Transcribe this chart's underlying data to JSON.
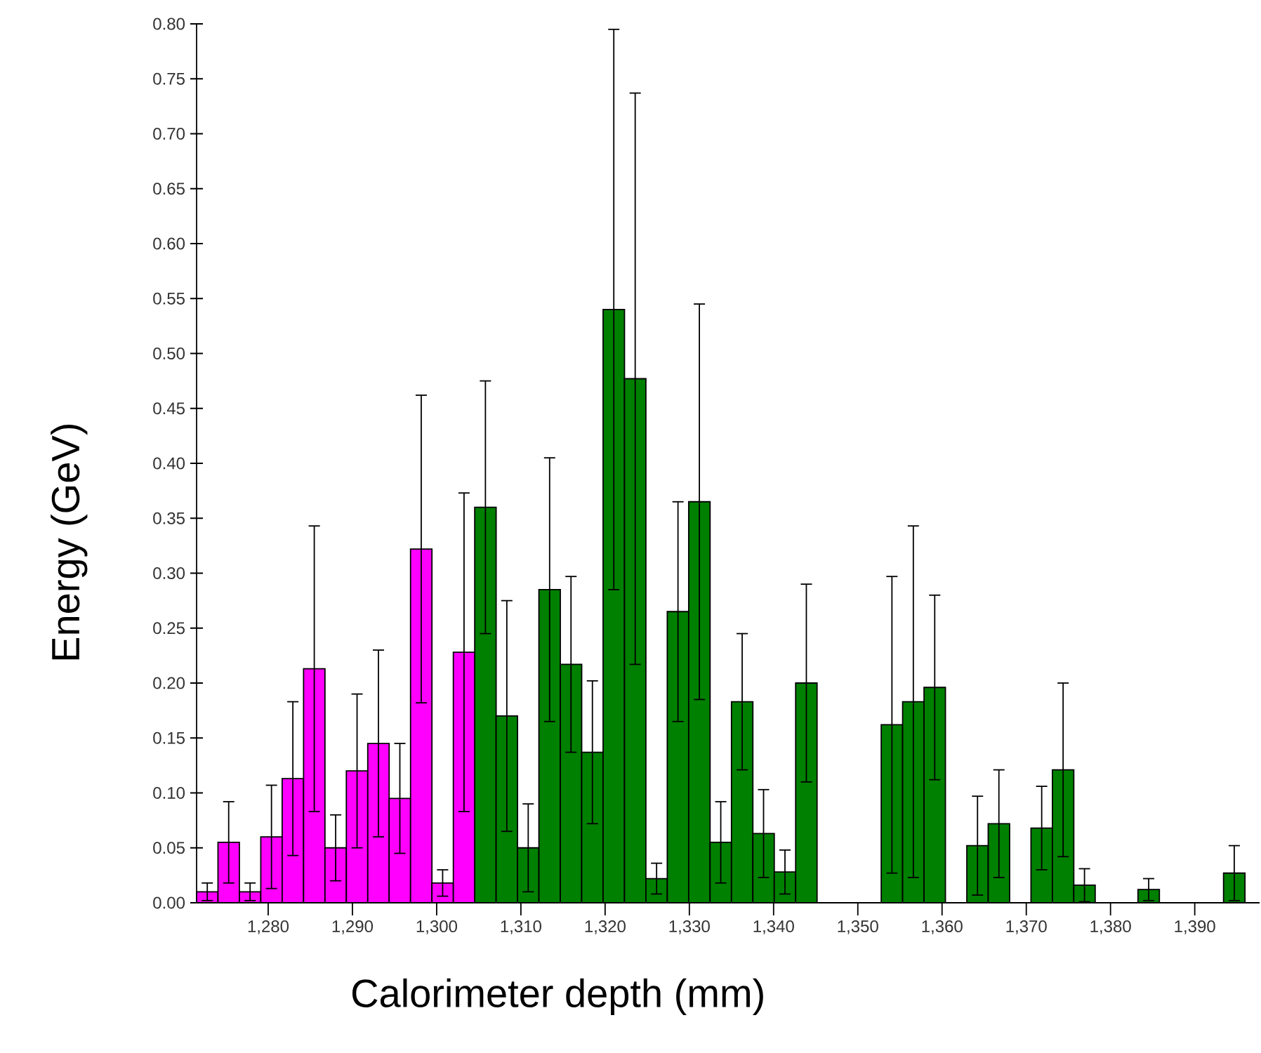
{
  "chart_data": {
    "type": "histogram",
    "xlabel": "Calorimeter depth (mm)",
    "ylabel": "Energy (GeV)",
    "bins": [
      1271.5,
      1274.04,
      1276.58,
      1279.12,
      1281.66,
      1284.2,
      1286.74,
      1289.28,
      1291.82,
      1294.36,
      1296.9,
      1299.44,
      1301.98,
      1304.52,
      1307.06,
      1309.6,
      1312.14,
      1314.68,
      1317.22,
      1319.76,
      1322.3,
      1324.84,
      1327.38,
      1329.92,
      1332.46,
      1335.0,
      1337.54,
      1340.08,
      1342.62,
      1345.16,
      1347.7,
      1350.24,
      1352.78,
      1355.32,
      1357.86,
      1360.4,
      1362.94,
      1365.48,
      1368.02,
      1370.56,
      1373.1,
      1375.64,
      1378.18,
      1380.72,
      1383.26,
      1385.8,
      1388.34,
      1390.88,
      1393.42,
      1395.96
    ],
    "values": [
      0.01,
      0.055,
      0.01,
      0.06,
      0.113,
      0.213,
      0.05,
      0.12,
      0.145,
      0.095,
      0.322,
      0.018,
      0.228,
      0.36,
      0.17,
      0.05,
      0.285,
      0.217,
      0.137,
      0.54,
      0.477,
      0.022,
      0.265,
      0.365,
      0.055,
      0.183,
      0.063,
      0.028,
      0.2,
      0,
      0,
      0,
      0.162,
      0.183,
      0.196,
      0,
      0.052,
      0.072,
      0,
      0.068,
      0.121,
      0.016,
      0,
      0,
      0.012,
      0,
      0,
      0,
      0.027
    ],
    "errors": [
      0.008,
      0.037,
      0.008,
      0.047,
      0.07,
      0.13,
      0.03,
      0.07,
      0.085,
      0.05,
      0.14,
      0.012,
      0.145,
      0.115,
      0.105,
      0.04,
      0.12,
      0.08,
      0.065,
      0.255,
      0.26,
      0.014,
      0.1,
      0.18,
      0.037,
      0.062,
      0.04,
      0.02,
      0.09,
      null,
      null,
      null,
      0.135,
      0.16,
      0.084,
      null,
      0.045,
      0.049,
      null,
      0.038,
      0.079,
      0.015,
      null,
      null,
      0.01,
      null,
      null,
      null,
      0.025
    ],
    "colors": [
      "#ff00ff",
      "#ff00ff",
      "#ff00ff",
      "#ff00ff",
      "#ff00ff",
      "#ff00ff",
      "#ff00ff",
      "#ff00ff",
      "#ff00ff",
      "#ff00ff",
      "#ff00ff",
      "#ff00ff",
      "#ff00ff",
      "#008000",
      "#008000",
      "#008000",
      "#008000",
      "#008000",
      "#008000",
      "#008000",
      "#008000",
      "#008000",
      "#008000",
      "#008000",
      "#008000",
      "#008000",
      "#008000",
      "#008000",
      "#008000",
      "#008000",
      "#008000",
      "#008000",
      "#008000",
      "#008000",
      "#008000",
      "#008000",
      "#008000",
      "#008000",
      "#008000",
      "#008000",
      "#008000",
      "#008000",
      "#008000",
      "#008000",
      "#008000",
      "#008000",
      "#008000",
      "#008000",
      "#008000"
    ],
    "xlim": [
      1271.5,
      1397.7
    ],
    "ylim": [
      0,
      0.8
    ],
    "xticks": [
      {
        "value": 1280,
        "label": "1,280"
      },
      {
        "value": 1290,
        "label": "1,290"
      },
      {
        "value": 1300,
        "label": "1,300"
      },
      {
        "value": 1310,
        "label": "1,310"
      },
      {
        "value": 1320,
        "label": "1,320"
      },
      {
        "value": 1330,
        "label": "1,330"
      },
      {
        "value": 1340,
        "label": "1,340"
      },
      {
        "value": 1350,
        "label": "1,350"
      },
      {
        "value": 1360,
        "label": "1,360"
      },
      {
        "value": 1370,
        "label": "1,370"
      },
      {
        "value": 1380,
        "label": "1,380"
      },
      {
        "value": 1390,
        "label": "1,390"
      }
    ],
    "yticks": [
      {
        "value": 0,
        "label": "0.00"
      },
      {
        "value": 0.05,
        "label": "0.05"
      },
      {
        "value": 0.1,
        "label": "0.10"
      },
      {
        "value": 0.15,
        "label": "0.15"
      },
      {
        "value": 0.2,
        "label": "0.20"
      },
      {
        "value": 0.25,
        "label": "0.25"
      },
      {
        "value": 0.3,
        "label": "0.30"
      },
      {
        "value": 0.35,
        "label": "0.35"
      },
      {
        "value": 0.4,
        "label": "0.40"
      },
      {
        "value": 0.45,
        "label": "0.45"
      },
      {
        "value": 0.5,
        "label": "0.50"
      },
      {
        "value": 0.55,
        "label": "0.55"
      },
      {
        "value": 0.6,
        "label": "0.60"
      },
      {
        "value": 0.65,
        "label": "0.65"
      },
      {
        "value": 0.7,
        "label": "0.70"
      },
      {
        "value": 0.75,
        "label": "0.75"
      },
      {
        "value": 0.8,
        "label": "0.80"
      }
    ],
    "grid": false
  }
}
